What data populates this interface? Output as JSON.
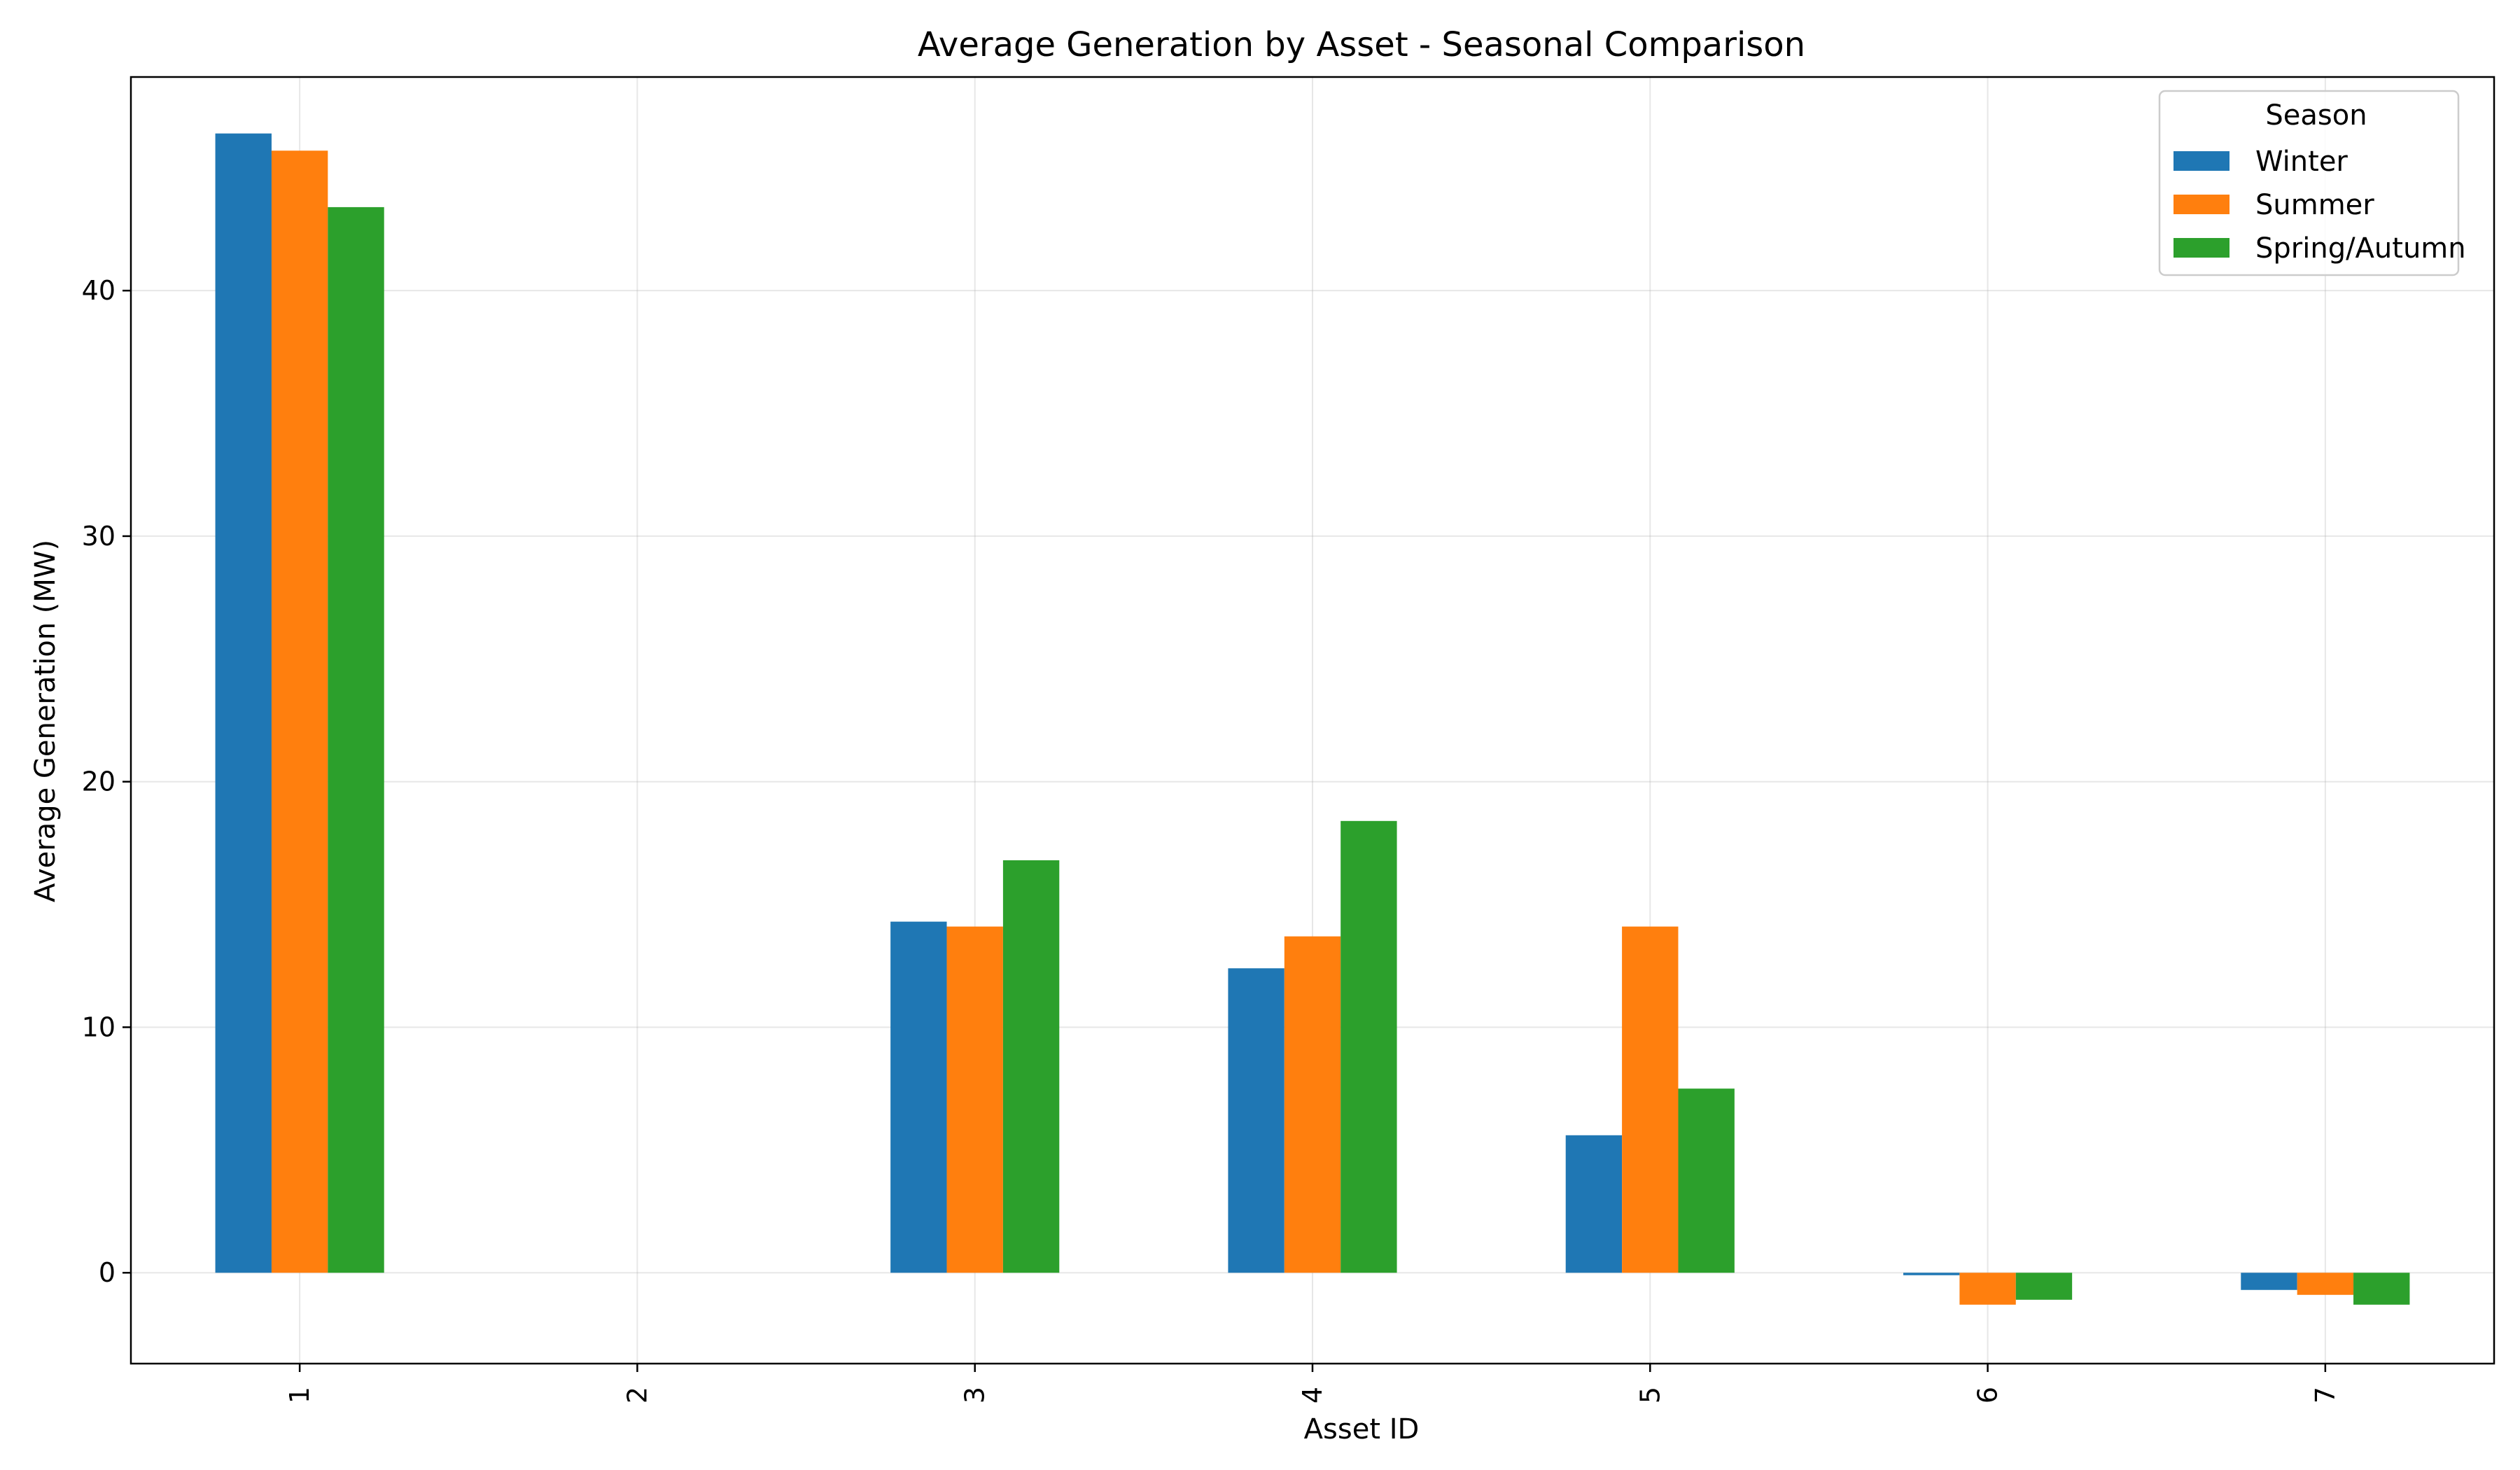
{
  "chart_data": {
    "type": "bar",
    "title": "Average Generation by Asset - Seasonal Comparison",
    "xlabel": "Asset ID",
    "ylabel": "Average Generation (MW)",
    "categories": [
      "1",
      "2",
      "3",
      "4",
      "5",
      "6",
      "7"
    ],
    "series": [
      {
        "name": "Winter",
        "color": "#1f77b4",
        "values": [
          46.4,
          0.0,
          14.3,
          12.4,
          5.6,
          -0.1,
          -0.7
        ]
      },
      {
        "name": "Summer",
        "color": "#ff7f0e",
        "values": [
          45.7,
          0.0,
          14.1,
          13.7,
          14.1,
          -1.3,
          -0.9
        ]
      },
      {
        "name": "Spring/Autumn",
        "color": "#2ca02c",
        "values": [
          43.4,
          0.0,
          16.8,
          18.4,
          7.5,
          -1.1,
          -1.3
        ]
      }
    ],
    "ylim": [
      -3.7,
      48.7
    ],
    "yticks": [
      0,
      10,
      20,
      30,
      40
    ],
    "grid": true,
    "legend": {
      "title": "Season",
      "position": "top-right"
    }
  }
}
